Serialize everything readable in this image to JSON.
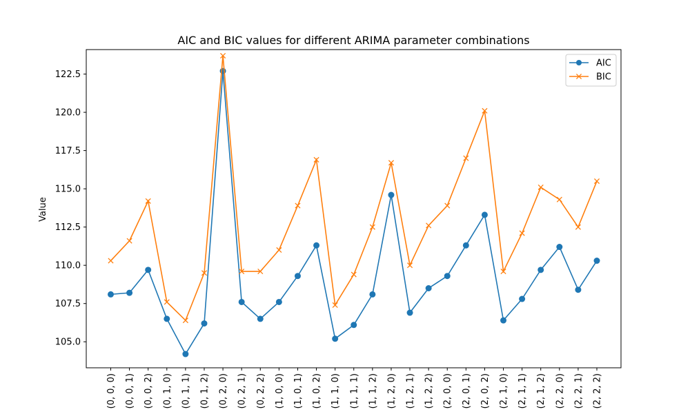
{
  "chart_data": {
    "type": "line",
    "title": "AIC and BIC values for different ARIMA parameter combinations",
    "xlabel": "",
    "ylabel": "Value",
    "categories": [
      "(0, 0, 0)",
      "(0, 0, 1)",
      "(0, 0, 2)",
      "(0, 1, 0)",
      "(0, 1, 1)",
      "(0, 1, 2)",
      "(0, 2, 0)",
      "(0, 2, 1)",
      "(0, 2, 2)",
      "(1, 0, 0)",
      "(1, 0, 1)",
      "(1, 0, 2)",
      "(1, 1, 0)",
      "(1, 1, 1)",
      "(1, 1, 2)",
      "(1, 2, 0)",
      "(1, 2, 1)",
      "(1, 2, 2)",
      "(2, 0, 0)",
      "(2, 0, 1)",
      "(2, 0, 2)",
      "(2, 1, 0)",
      "(2, 1, 1)",
      "(2, 1, 2)",
      "(2, 2, 0)",
      "(2, 2, 1)",
      "(2, 2, 2)"
    ],
    "yticks": [
      "105.0",
      "107.5",
      "110.0",
      "112.5",
      "115.0",
      "117.5",
      "120.0",
      "122.5"
    ],
    "ylim": [
      103.3,
      124.1
    ],
    "grid": false,
    "legend_position": "top-right",
    "series": [
      {
        "name": "AIC",
        "color": "#1f77b4",
        "marker": "circle",
        "values": [
          108.1,
          108.2,
          109.7,
          106.5,
          104.2,
          106.2,
          122.7,
          107.6,
          106.5,
          107.6,
          109.3,
          111.3,
          105.2,
          106.1,
          108.1,
          114.6,
          106.9,
          108.5,
          109.3,
          111.3,
          113.3,
          106.4,
          107.8,
          109.7,
          111.2,
          108.4,
          110.3
        ]
      },
      {
        "name": "BIC",
        "color": "#ff7f0e",
        "marker": "x",
        "values": [
          110.3,
          111.6,
          114.2,
          107.6,
          106.4,
          109.5,
          123.7,
          109.6,
          109.6,
          111.0,
          113.9,
          116.9,
          107.4,
          109.4,
          112.5,
          116.7,
          110.0,
          112.6,
          113.9,
          117.0,
          120.1,
          109.6,
          112.1,
          115.1,
          114.3,
          112.5,
          115.5
        ]
      }
    ]
  }
}
